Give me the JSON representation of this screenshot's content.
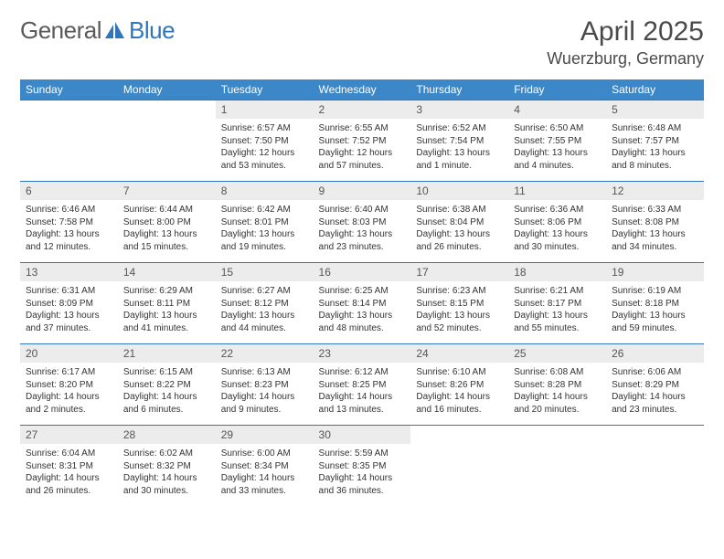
{
  "brand": {
    "part1": "General",
    "part2": "Blue"
  },
  "title": "April 2025",
  "location": "Wuerzburg, Germany",
  "colors": {
    "header_bg": "#3b87c8",
    "header_text": "#ffffff",
    "daynum_bg": "#ececec",
    "daynum_text": "#555555",
    "border": "#2f76bb",
    "body_text": "#333333",
    "logo_gray": "#5a5a5a",
    "logo_blue": "#2f76bb"
  },
  "typography": {
    "month_title_size": 30,
    "location_size": 18,
    "dow_size": 12,
    "daynum_size": 12,
    "detail_size": 10
  },
  "daysOfWeek": [
    "Sunday",
    "Monday",
    "Tuesday",
    "Wednesday",
    "Thursday",
    "Friday",
    "Saturday"
  ],
  "weeks": [
    {
      "nums": [
        "",
        "",
        "1",
        "2",
        "3",
        "4",
        "5"
      ],
      "details": [
        "",
        "",
        "Sunrise: 6:57 AM\nSunset: 7:50 PM\nDaylight: 12 hours and 53 minutes.",
        "Sunrise: 6:55 AM\nSunset: 7:52 PM\nDaylight: 12 hours and 57 minutes.",
        "Sunrise: 6:52 AM\nSunset: 7:54 PM\nDaylight: 13 hours and 1 minute.",
        "Sunrise: 6:50 AM\nSunset: 7:55 PM\nDaylight: 13 hours and 4 minutes.",
        "Sunrise: 6:48 AM\nSunset: 7:57 PM\nDaylight: 13 hours and 8 minutes."
      ]
    },
    {
      "nums": [
        "6",
        "7",
        "8",
        "9",
        "10",
        "11",
        "12"
      ],
      "details": [
        "Sunrise: 6:46 AM\nSunset: 7:58 PM\nDaylight: 13 hours and 12 minutes.",
        "Sunrise: 6:44 AM\nSunset: 8:00 PM\nDaylight: 13 hours and 15 minutes.",
        "Sunrise: 6:42 AM\nSunset: 8:01 PM\nDaylight: 13 hours and 19 minutes.",
        "Sunrise: 6:40 AM\nSunset: 8:03 PM\nDaylight: 13 hours and 23 minutes.",
        "Sunrise: 6:38 AM\nSunset: 8:04 PM\nDaylight: 13 hours and 26 minutes.",
        "Sunrise: 6:36 AM\nSunset: 8:06 PM\nDaylight: 13 hours and 30 minutes.",
        "Sunrise: 6:33 AM\nSunset: 8:08 PM\nDaylight: 13 hours and 34 minutes."
      ]
    },
    {
      "nums": [
        "13",
        "14",
        "15",
        "16",
        "17",
        "18",
        "19"
      ],
      "details": [
        "Sunrise: 6:31 AM\nSunset: 8:09 PM\nDaylight: 13 hours and 37 minutes.",
        "Sunrise: 6:29 AM\nSunset: 8:11 PM\nDaylight: 13 hours and 41 minutes.",
        "Sunrise: 6:27 AM\nSunset: 8:12 PM\nDaylight: 13 hours and 44 minutes.",
        "Sunrise: 6:25 AM\nSunset: 8:14 PM\nDaylight: 13 hours and 48 minutes.",
        "Sunrise: 6:23 AM\nSunset: 8:15 PM\nDaylight: 13 hours and 52 minutes.",
        "Sunrise: 6:21 AM\nSunset: 8:17 PM\nDaylight: 13 hours and 55 minutes.",
        "Sunrise: 6:19 AM\nSunset: 8:18 PM\nDaylight: 13 hours and 59 minutes."
      ]
    },
    {
      "nums": [
        "20",
        "21",
        "22",
        "23",
        "24",
        "25",
        "26"
      ],
      "details": [
        "Sunrise: 6:17 AM\nSunset: 8:20 PM\nDaylight: 14 hours and 2 minutes.",
        "Sunrise: 6:15 AM\nSunset: 8:22 PM\nDaylight: 14 hours and 6 minutes.",
        "Sunrise: 6:13 AM\nSunset: 8:23 PM\nDaylight: 14 hours and 9 minutes.",
        "Sunrise: 6:12 AM\nSunset: 8:25 PM\nDaylight: 14 hours and 13 minutes.",
        "Sunrise: 6:10 AM\nSunset: 8:26 PM\nDaylight: 14 hours and 16 minutes.",
        "Sunrise: 6:08 AM\nSunset: 8:28 PM\nDaylight: 14 hours and 20 minutes.",
        "Sunrise: 6:06 AM\nSunset: 8:29 PM\nDaylight: 14 hours and 23 minutes."
      ]
    },
    {
      "nums": [
        "27",
        "28",
        "29",
        "30",
        "",
        "",
        ""
      ],
      "details": [
        "Sunrise: 6:04 AM\nSunset: 8:31 PM\nDaylight: 14 hours and 26 minutes.",
        "Sunrise: 6:02 AM\nSunset: 8:32 PM\nDaylight: 14 hours and 30 minutes.",
        "Sunrise: 6:00 AM\nSunset: 8:34 PM\nDaylight: 14 hours and 33 minutes.",
        "Sunrise: 5:59 AM\nSunset: 8:35 PM\nDaylight: 14 hours and 36 minutes.",
        "",
        "",
        ""
      ]
    }
  ]
}
